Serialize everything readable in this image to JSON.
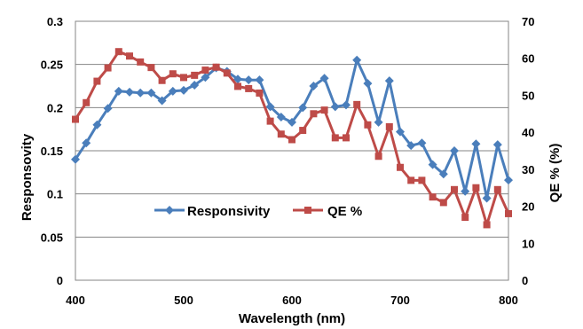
{
  "chart_data": {
    "type": "line",
    "xlabel": "Wavelength (nm)",
    "ylabel_left": "Responsovity",
    "ylabel_right": "QE % (%)",
    "xlim": [
      400,
      800
    ],
    "ylim_left": [
      0,
      0.3
    ],
    "ylim_right": [
      0,
      70
    ],
    "x_ticks": [
      "400",
      "500",
      "600",
      "700",
      "800"
    ],
    "y_left_ticks": [
      "0",
      "0.05",
      "0.1",
      "0.15",
      "0.2",
      "0.25",
      "0.3"
    ],
    "y_right_ticks": [
      "0",
      "10",
      "20",
      "30",
      "40",
      "50",
      "60",
      "70"
    ],
    "grid": "horizontal",
    "legend_position": "center",
    "series": [
      {
        "name": "Responsivity",
        "axis": "left",
        "color": "#4A7EBB",
        "marker": "diamond",
        "x": [
          400,
          410,
          420,
          430,
          440,
          450,
          460,
          470,
          480,
          490,
          500,
          510,
          520,
          530,
          540,
          550,
          560,
          570,
          580,
          590,
          600,
          610,
          620,
          630,
          640,
          650,
          660,
          670,
          680,
          690,
          700,
          710,
          720,
          730,
          740,
          750,
          760,
          770,
          780,
          790,
          800
        ],
        "values": [
          0.14,
          0.159,
          0.18,
          0.199,
          0.219,
          0.218,
          0.217,
          0.217,
          0.208,
          0.219,
          0.22,
          0.226,
          0.235,
          0.246,
          0.242,
          0.233,
          0.232,
          0.232,
          0.201,
          0.189,
          0.183,
          0.2,
          0.225,
          0.234,
          0.201,
          0.203,
          0.255,
          0.228,
          0.183,
          0.231,
          0.172,
          0.156,
          0.159,
          0.134,
          0.123,
          0.15,
          0.103,
          0.158,
          0.095,
          0.157,
          0.116
        ]
      },
      {
        "name": "QE %",
        "axis": "right",
        "color": "#BE4B48",
        "marker": "square",
        "x": [
          400,
          410,
          420,
          430,
          440,
          450,
          460,
          470,
          480,
          490,
          500,
          510,
          520,
          530,
          540,
          550,
          560,
          570,
          580,
          590,
          600,
          610,
          620,
          630,
          640,
          650,
          660,
          670,
          680,
          690,
          700,
          710,
          720,
          730,
          740,
          750,
          760,
          770,
          780,
          790,
          800
        ],
        "values": [
          43.5,
          48.0,
          53.8,
          57.4,
          61.8,
          60.6,
          59.0,
          57.5,
          54.0,
          55.8,
          54.8,
          55.4,
          56.8,
          57.6,
          56.0,
          52.4,
          51.8,
          50.6,
          43.0,
          39.5,
          38.0,
          40.5,
          45.0,
          46.0,
          38.5,
          38.5,
          47.5,
          42.0,
          33.5,
          41.5,
          30.5,
          27.0,
          27.0,
          22.5,
          21.0,
          24.5,
          17.0,
          25.0,
          15.0,
          24.5,
          18.0
        ]
      }
    ]
  }
}
